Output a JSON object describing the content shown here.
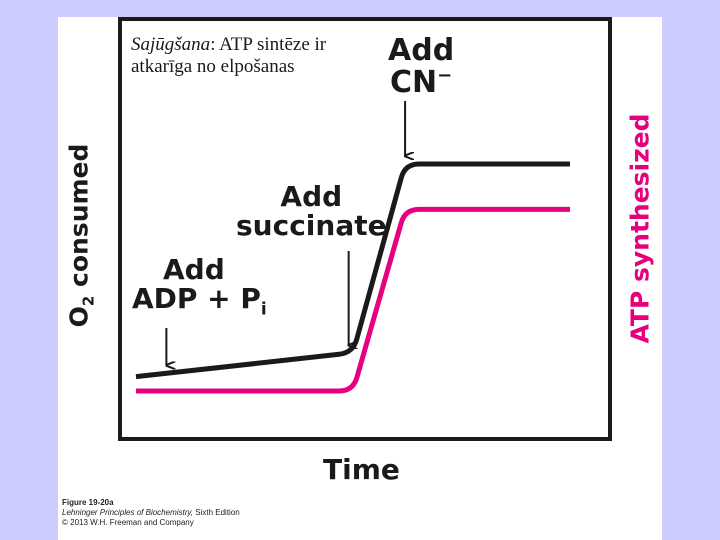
{
  "note": {
    "italic_part": "Sajūgšana",
    "rest": ": ATP sintēze ir atkarīga no elpošanas"
  },
  "annotations": {
    "add_cn_line1": "Add",
    "add_cn_line2": "CN",
    "add_cn_sup": "−",
    "add_succinate_line1": "Add",
    "add_succinate_line2": "succinate",
    "add_adp_line1": "Add",
    "add_adp_line2": "ADP + P",
    "add_adp_sub": "i"
  },
  "axes": {
    "xlabel": "Time",
    "ylabel_left_main": "O",
    "ylabel_left_sub": "2",
    "ylabel_left_rest": " consumed",
    "ylabel_right": "ATP synthesized"
  },
  "caption": {
    "figure": "Figure 19-20a",
    "book": "Lehninger Principles of Biochemistry,",
    "edition": " Sixth Edition",
    "copyright": "© 2013 W.H. Freeman and Company"
  },
  "colors": {
    "o2_line": "#1a1a1a",
    "atp_line": "#e6007e",
    "right_label": "#e6007e",
    "background": "#ccccff"
  },
  "chart_data": {
    "type": "line",
    "x": [
      0,
      0.5,
      0.62,
      1
    ],
    "series": [
      {
        "values": [
          0.06,
          0.16,
          0.95,
          0.95
        ]
      },
      {
        "values": [
          0,
          0,
          0.76,
          0.76
        ]
      }
    ],
    "xlim": [
      0,
      1
    ],
    "ylim": [
      0,
      1
    ],
    "grid": false,
    "events": [
      {
        "at": 0.07
      },
      {
        "at": 0.49
      },
      {
        "at": 0.62
      }
    ]
  }
}
